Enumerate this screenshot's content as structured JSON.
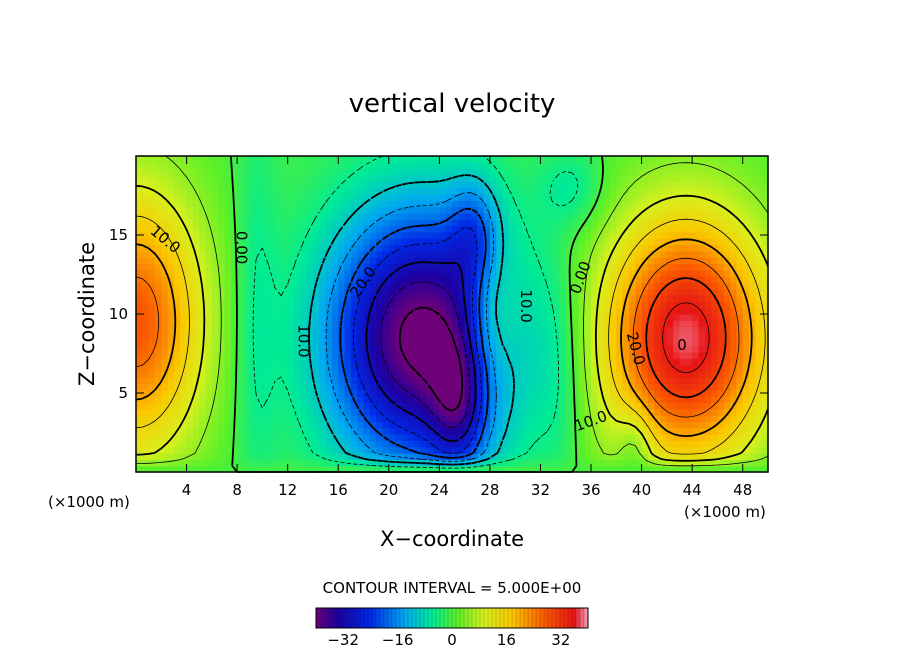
{
  "chart_data": {
    "type": "heatmap",
    "title": "vertical velocity",
    "xlabel": "X−coordinate",
    "ylabel": "Z−coordinate",
    "x_unit_left": "(×1000 m)",
    "x_unit_right": "(×1000 m)",
    "xlim": [
      0,
      50
    ],
    "ylim": [
      0,
      20
    ],
    "x_ticks": [
      4,
      8,
      12,
      16,
      20,
      24,
      28,
      32,
      36,
      40,
      44,
      48
    ],
    "y_ticks": [
      5,
      10,
      15
    ],
    "contour_interval_text": "CONTOUR INTERVAL = 5.000E+00",
    "color_range": [
      -40,
      40
    ],
    "colorbar_ticks": [
      -32,
      -16,
      0,
      16,
      32
    ],
    "colorbar_tick_labels": [
      "−32",
      "−16",
      "0",
      "16",
      "32"
    ],
    "contour_labels": [
      {
        "text": "10.0",
        "x": 2.3,
        "y": 14.7,
        "rot": 40
      },
      {
        "text": "0.00",
        "x": 8.3,
        "y": 14.2,
        "rot": 90
      },
      {
        "text": "20.0",
        "x": 18.0,
        "y": 12.0,
        "rot": -55
      },
      {
        "text": "10.0",
        "x": 13.2,
        "y": 8.3,
        "rot": 90
      },
      {
        "text": "10.0",
        "x": 30.8,
        "y": 10.5,
        "rot": 90
      },
      {
        "text": "0.00",
        "x": 35.2,
        "y": 12.3,
        "rot": -70
      },
      {
        "text": "20.0",
        "x": 39.5,
        "y": 7.8,
        "rot": 75
      },
      {
        "text": "10.0",
        "x": 36.0,
        "y": 3.2,
        "rot": -20
      },
      {
        "text": "0",
        "x": 43.2,
        "y": 8.0,
        "rot": 0
      }
    ],
    "field_features": [
      {
        "sign": "+",
        "amp": 28,
        "cx": 0.0,
        "cz": 9.5,
        "sx": 3.8,
        "sz": 6.0
      },
      {
        "sign": "-",
        "amp": 42,
        "cx": 22.5,
        "cz": 8.5,
        "sx": 5.2,
        "sz": 5.8
      },
      {
        "sign": "-",
        "amp": 14,
        "cx": 25.5,
        "cz": 4.0,
        "sx": 1.5,
        "sz": 3.0
      },
      {
        "sign": "-",
        "amp": 12,
        "cx": 26.8,
        "cz": 15.0,
        "sx": 1.4,
        "sz": 2.5
      },
      {
        "sign": "+",
        "amp": 12,
        "cx": 28.2,
        "cz": 9.8,
        "sx": 1.6,
        "sz": 3.5
      },
      {
        "sign": "+",
        "amp": 38,
        "cx": 43.5,
        "cz": 8.5,
        "sx": 4.6,
        "sz": 5.5
      },
      {
        "sign": "-",
        "amp": 6,
        "cx": 34.5,
        "cz": 18.0,
        "sx": 1.8,
        "sz": 1.8
      },
      {
        "sign": "-",
        "amp": 7,
        "cx": 39.5,
        "cz": 1.5,
        "sx": 1.0,
        "sz": 1.8
      },
      {
        "sign": "-",
        "amp": 5,
        "cx": 9.5,
        "cz": 10.0,
        "sx": 1.2,
        "sz": 10.0
      },
      {
        "sign": "-",
        "amp": 4,
        "cx": 33.5,
        "cz": 6.0,
        "sx": 1.3,
        "sz": 5.0
      }
    ]
  }
}
